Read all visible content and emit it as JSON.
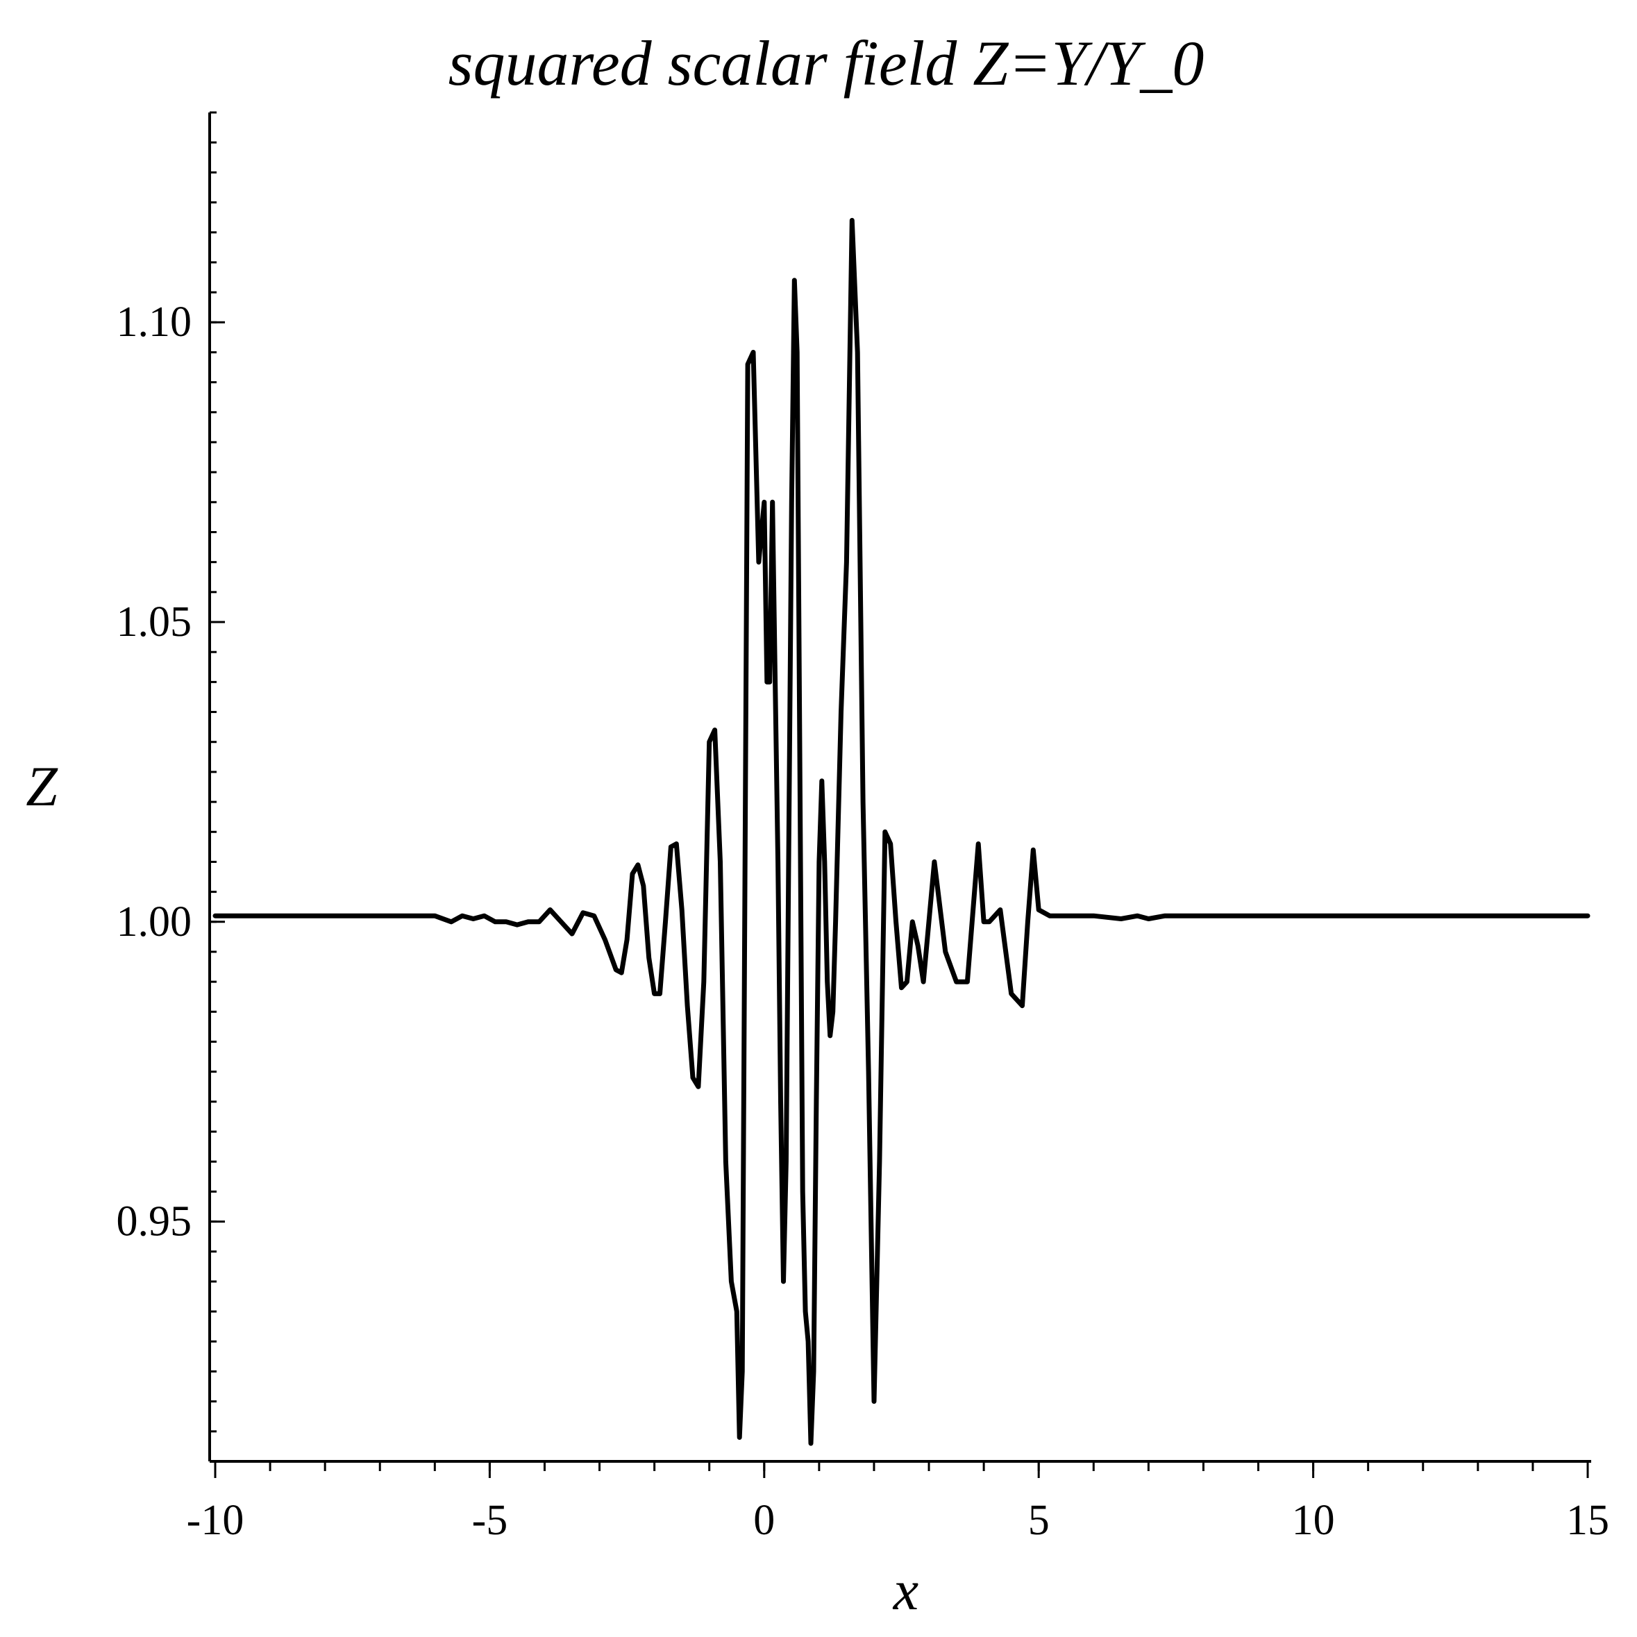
{
  "chart_data": {
    "type": "line",
    "title": "squared scalar field Z=Y/Y_0",
    "xlabel": "x",
    "ylabel": "Z",
    "xlim": [
      -10,
      15
    ],
    "ylim": [
      0.91,
      1.135
    ],
    "grid": false,
    "legend": "none",
    "line_color": "#000000",
    "x_ticks": [
      {
        "value": -10,
        "label": "-10"
      },
      {
        "value": -5,
        "label": "-5"
      },
      {
        "value": 0,
        "label": "0"
      },
      {
        "value": 5,
        "label": "5"
      },
      {
        "value": 10,
        "label": "10"
      },
      {
        "value": 15,
        "label": "15"
      }
    ],
    "x_minor_step": 1,
    "y_ticks": [
      {
        "value": 0.95,
        "label": "0.95"
      },
      {
        "value": 1.0,
        "label": "1.00"
      },
      {
        "value": 1.05,
        "label": "1.05"
      },
      {
        "value": 1.1,
        "label": "1.10"
      }
    ],
    "y_minor_step": 0.005,
    "series": [
      {
        "x": [
          -10,
          -6.0,
          -5.7,
          -5.5,
          -5.3,
          -5.1,
          -4.9,
          -4.7,
          -4.5,
          -4.3,
          -4.1,
          -3.9,
          -3.7,
          -3.5,
          -3.3,
          -3.1,
          -2.9,
          -2.7,
          -2.6,
          -2.5,
          -2.4,
          -2.3,
          -2.2,
          -2.1,
          -2.0,
          -1.9,
          -1.8,
          -1.7,
          -1.6,
          -1.5,
          -1.4,
          -1.3,
          -1.2,
          -1.1,
          -1.0,
          -0.9,
          -0.8,
          -0.7,
          -0.6,
          -0.5,
          -0.45,
          -0.4,
          -0.3,
          -0.2,
          -0.1,
          0.0,
          0.05,
          0.1,
          0.15,
          0.2,
          0.25,
          0.3,
          0.35,
          0.4,
          0.5,
          0.55,
          0.6,
          0.7,
          0.75,
          0.8,
          0.85,
          0.9,
          0.95,
          1.0,
          1.05,
          1.1,
          1.15,
          1.2,
          1.25,
          1.3,
          1.4,
          1.5,
          1.6,
          1.7,
          1.8,
          1.9,
          2.0,
          2.1,
          2.2,
          2.3,
          2.4,
          2.5,
          2.6,
          2.7,
          2.8,
          2.9,
          3.0,
          3.1,
          3.3,
          3.5,
          3.7,
          3.9,
          4.0,
          4.1,
          4.3,
          4.5,
          4.7,
          4.8,
          4.9,
          5.0,
          5.2,
          5.4,
          5.6,
          6.0,
          6.5,
          6.8,
          7.0,
          7.3,
          7.6,
          15
        ],
        "y": [
          1.001,
          1.001,
          1.0,
          1.001,
          1.0005,
          1.001,
          1.0,
          1.0,
          0.9995,
          1.0,
          1.0,
          1.002,
          1.0,
          0.998,
          1.0015,
          1.001,
          0.997,
          0.992,
          0.9915,
          0.997,
          1.008,
          1.0095,
          1.006,
          0.994,
          0.988,
          0.988,
          1.0,
          1.0125,
          1.013,
          1.002,
          0.986,
          0.974,
          0.9725,
          0.99,
          1.03,
          1.032,
          1.01,
          0.96,
          0.94,
          0.935,
          0.914,
          0.925,
          1.093,
          1.095,
          1.06,
          1.07,
          1.04,
          1.04,
          1.07,
          1.04,
          1.01,
          0.97,
          0.94,
          0.96,
          1.07,
          1.107,
          1.095,
          0.955,
          0.935,
          0.93,
          0.913,
          0.925,
          0.97,
          1.01,
          1.0235,
          1.01,
          0.99,
          0.981,
          0.985,
          1.0,
          1.035,
          1.06,
          1.117,
          1.095,
          1.02,
          0.975,
          0.92,
          0.96,
          1.015,
          1.013,
          1.0,
          0.989,
          0.99,
          1.0,
          0.996,
          0.99,
          1.0,
          1.01,
          0.995,
          0.99,
          0.99,
          1.013,
          1.0,
          1.0,
          1.002,
          0.988,
          0.986,
          1.0,
          1.012,
          1.002,
          1.001,
          1.001,
          1.001,
          1.001,
          1.0005,
          1.001,
          1.0005,
          1.001,
          1.001,
          1.001
        ]
      }
    ]
  }
}
